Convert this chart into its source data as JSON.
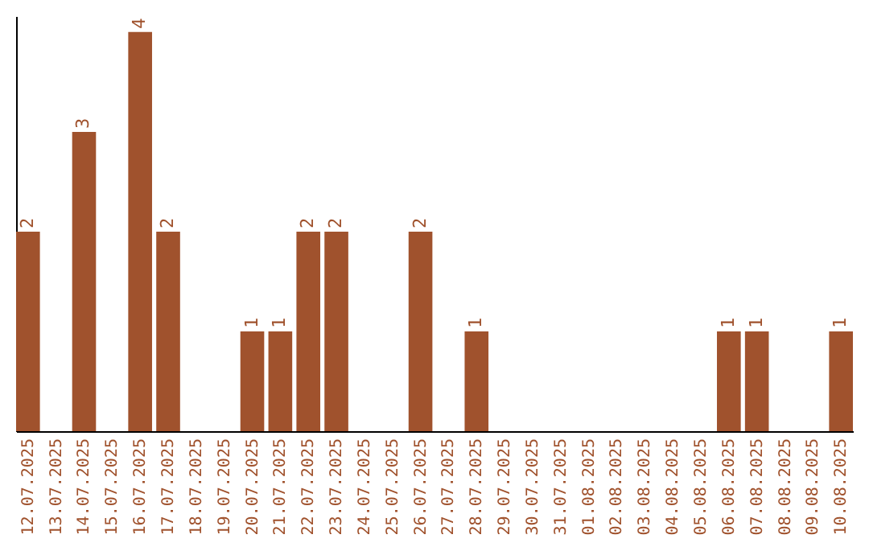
{
  "chart_data": {
    "type": "bar",
    "categories": [
      "12.07.2025",
      "13.07.2025",
      "14.07.2025",
      "15.07.2025",
      "16.07.2025",
      "17.07.2025",
      "18.07.2025",
      "19.07.2025",
      "20.07.2025",
      "21.07.2025",
      "22.07.2025",
      "23.07.2025",
      "24.07.2025",
      "25.07.2025",
      "26.07.2025",
      "27.07.2025",
      "28.07.2025",
      "29.07.2025",
      "30.07.2025",
      "31.07.2025",
      "01.08.2025",
      "02.08.2025",
      "03.08.2025",
      "04.08.2025",
      "05.08.2025",
      "06.08.2025",
      "07.08.2025",
      "08.08.2025",
      "09.08.2025",
      "10.08.2025"
    ],
    "values": [
      2,
      0,
      3,
      0,
      4,
      2,
      0,
      0,
      1,
      1,
      2,
      2,
      0,
      0,
      2,
      0,
      1,
      0,
      0,
      0,
      0,
      0,
      0,
      0,
      0,
      1,
      1,
      0,
      0,
      1
    ],
    "value_labels": [
      "2",
      null,
      "3",
      null,
      "4",
      "2",
      null,
      null,
      "1",
      "1",
      "2",
      "2",
      null,
      null,
      "2",
      null,
      "1",
      null,
      null,
      null,
      null,
      null,
      null,
      null,
      null,
      "1",
      "1",
      null,
      null,
      "1"
    ],
    "color": "#a0522d",
    "grid": false,
    "tick_labels": "x"
  }
}
